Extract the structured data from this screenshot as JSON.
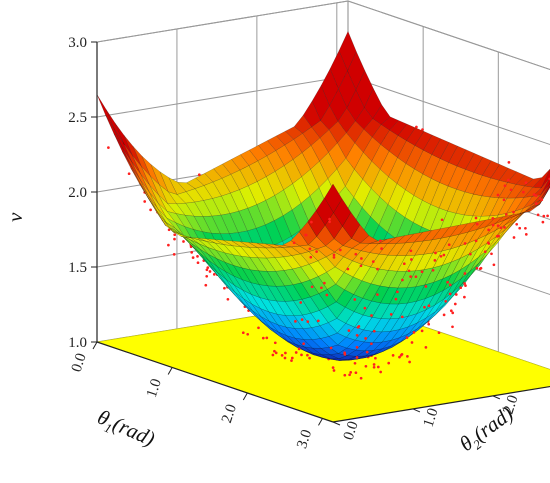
{
  "chart_data": {
    "type": "surface3d",
    "title": "",
    "xlabel": {
      "symbol": "θ",
      "sub": "1",
      "unit": "(rad)"
    },
    "ylabel": {
      "symbol": "θ",
      "sub": "2",
      "unit": "(rad)"
    },
    "zlabel": "ν",
    "xlim": [
      0,
      3.14
    ],
    "ylim": [
      0,
      3.14
    ],
    "zlim": [
      1.0,
      3.0
    ],
    "x_ticks": [
      "0.0",
      "1.0",
      "2.0",
      "3.0"
    ],
    "y_ticks": [
      "0.0",
      "1.0",
      "2.0",
      "3.0"
    ],
    "z_ticks": [
      "1.0",
      "1.5",
      "2.0",
      "2.5",
      "3.0"
    ],
    "plane": {
      "z": 1.0,
      "color": "#ffff00"
    },
    "surface": {
      "colormap": [
        "#1010a0",
        "#0080ff",
        "#00e0e0",
        "#00d050",
        "#e0f000",
        "#ff8000",
        "#d00000"
      ],
      "corner_values": {
        "x0_y0": 1.75,
        "x0_y3": 2.35,
        "x3_y0": 2.15,
        "x3_y3": 2.2
      },
      "minimum": {
        "x": 1.6,
        "y": 1.5,
        "z": 1.04
      },
      "grid": true
    },
    "scatter": {
      "color": "#ff2020",
      "description_of_spread": ""
    },
    "grid": true
  }
}
